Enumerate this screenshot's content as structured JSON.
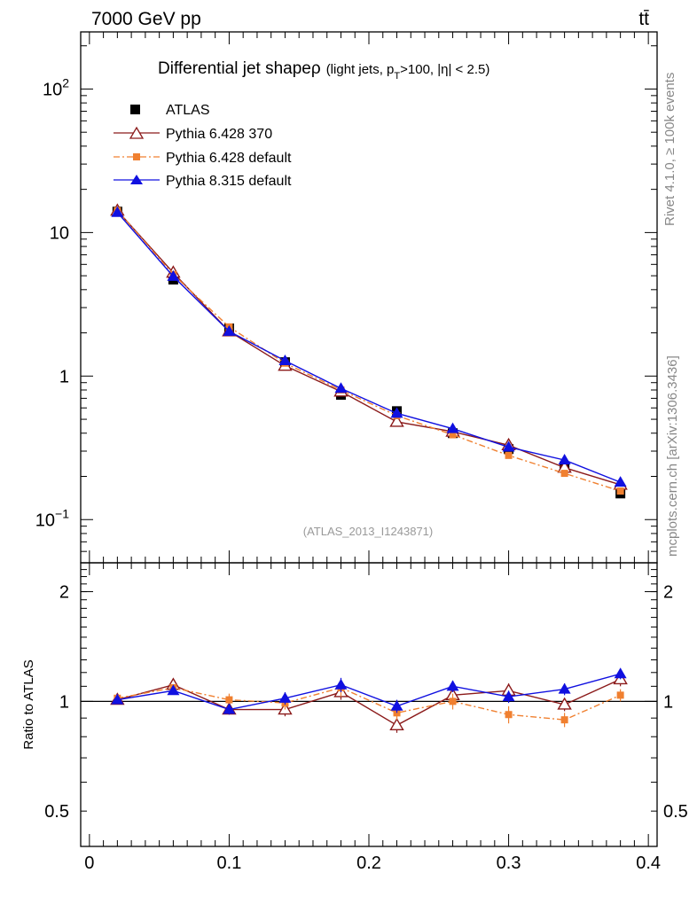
{
  "header": {
    "energy": "7000 GeV pp",
    "process": "tt̄"
  },
  "side_labels": {
    "rivet": "Rivet 4.1.0, ≥ 100k events",
    "mcplots": "mcplots.cern.ch [arXiv:1306.3436]"
  },
  "colors": {
    "atlas": "#000000",
    "pythia6_370": "#8b1a1a",
    "pythia6_default": "#f08030",
    "pythia8": "#1010e0"
  },
  "chart_data": [
    {
      "type": "line",
      "panel": "main",
      "title": "Differential jet shape",
      "title_symbol": "ρ",
      "subtitle_pre": "(light jets, p",
      "subtitle_sub": "T",
      "subtitle_post": ">100, |η| < 2.5)",
      "analysis_id": "(ATLAS_2013_I1243871)",
      "yscale": "log",
      "ylim": [
        0.05,
        250
      ],
      "xlim": [
        -0.00625,
        0.40625
      ],
      "y_ticks": [
        {
          "value": 100,
          "base": "10",
          "exp": "2"
        },
        {
          "value": 10,
          "base": "10",
          "exp": ""
        },
        {
          "value": 1,
          "base": "1",
          "exp": ""
        },
        {
          "value": 0.1,
          "base": "10",
          "exp": "−1"
        }
      ],
      "x": [
        0.02,
        0.06,
        0.1,
        0.14,
        0.18,
        0.22,
        0.26,
        0.3,
        0.34,
        0.38
      ],
      "series": [
        {
          "name": "ATLAS",
          "style": "data",
          "values": [
            14.0,
            4.7,
            2.15,
            1.25,
            0.74,
            0.57,
            0.4,
            0.31,
            0.235,
            0.152
          ]
        },
        {
          "name": "Pythia 6.428 370",
          "style": "open-triangle",
          "values": [
            14.2,
            5.25,
            2.05,
            1.18,
            0.78,
            0.48,
            0.41,
            0.33,
            0.23,
            0.175
          ]
        },
        {
          "name": "Pythia 6.428 default",
          "style": "dashdot-square",
          "values": [
            14.2,
            5.1,
            2.2,
            1.23,
            0.8,
            0.53,
            0.39,
            0.28,
            0.21,
            0.158
          ]
        },
        {
          "name": "Pythia 8.315 default",
          "style": "filled-triangle",
          "values": [
            13.8,
            4.95,
            2.05,
            1.28,
            0.82,
            0.55,
            0.43,
            0.32,
            0.26,
            0.182
          ]
        }
      ]
    },
    {
      "type": "line",
      "panel": "ratio",
      "ylabel": "Ratio to ATLAS",
      "yscale": "log",
      "ylim": [
        0.4,
        2.4
      ],
      "xlim": [
        -0.00625,
        0.40625
      ],
      "y_ticks": [
        {
          "value": 2,
          "label": "2"
        },
        {
          "value": 1,
          "label": "1"
        },
        {
          "value": 0.5,
          "label": "0.5"
        }
      ],
      "x_ticks": [
        {
          "value": 0,
          "label": "0"
        },
        {
          "value": 0.1,
          "label": "0.1"
        },
        {
          "value": 0.2,
          "label": "0.2"
        },
        {
          "value": 0.3,
          "label": "0.3"
        },
        {
          "value": 0.4,
          "label": "0.4"
        }
      ],
      "x": [
        0.02,
        0.06,
        0.1,
        0.14,
        0.18,
        0.22,
        0.26,
        0.3,
        0.34,
        0.38
      ],
      "series": [
        {
          "name": "Pythia 6.428 370",
          "style": "open-triangle",
          "values": [
            1.01,
            1.11,
            0.95,
            0.95,
            1.06,
            0.86,
            1.04,
            1.07,
            0.98,
            1.15
          ],
          "errors": [
            0.02,
            0.02,
            0.03,
            0.04,
            0.05,
            0.04,
            0.04,
            0.05,
            0.04,
            0.05
          ]
        },
        {
          "name": "Pythia 6.428 default",
          "style": "dashdot-square",
          "values": [
            1.02,
            1.09,
            1.01,
            0.99,
            1.09,
            0.93,
            1.0,
            0.92,
            0.89,
            1.04
          ],
          "errors": [
            0.02,
            0.02,
            0.04,
            0.04,
            0.06,
            0.04,
            0.05,
            0.05,
            0.04,
            0.04
          ]
        },
        {
          "name": "Pythia 8.315 default",
          "style": "filled-triangle",
          "values": [
            1.01,
            1.07,
            0.95,
            1.02,
            1.11,
            0.97,
            1.1,
            1.03,
            1.08,
            1.19
          ],
          "errors": [
            0.02,
            0.02,
            0.03,
            0.04,
            0.05,
            0.04,
            0.04,
            0.04,
            0.04,
            0.04
          ]
        }
      ]
    }
  ]
}
